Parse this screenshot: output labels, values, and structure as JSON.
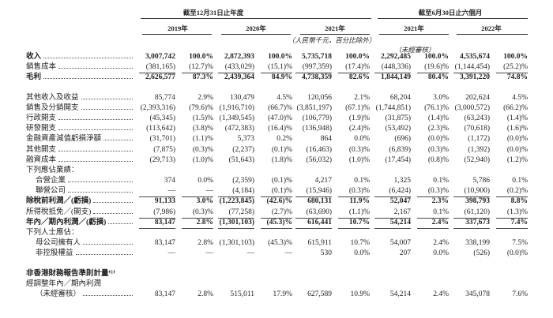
{
  "header": {
    "group_annual": "截至12月31日止年度",
    "group_interim": "截至6月30日止六個月",
    "years": [
      "2019年",
      "2020年",
      "2021年",
      "2021年",
      "2022年"
    ],
    "unit_note": "（人民幣千元，百分比除外）",
    "unaudited_note": "（未經審核）"
  },
  "rows": [
    {
      "label": "收入",
      "bold": true,
      "values": [
        "3,007,742",
        "100.0%",
        "2,872,393",
        "100.0%",
        "5,735,718",
        "100.0%",
        "2,292,485",
        "100.0%",
        "4,535,674",
        "100.0%"
      ]
    },
    {
      "label": "銷售成本",
      "values": [
        "(381,165)",
        "(12.7)%",
        "(433,029)",
        "(15.1)%",
        "(997,359)",
        "(17.4)%",
        "(448,336)",
        "(19.6)%",
        "(1,144,454)",
        "(25.2)%"
      ],
      "line": true
    },
    {
      "label": "毛利",
      "bold": true,
      "values": [
        "2,626,577",
        "87.3%",
        "2,439,364",
        "84.9%",
        "4,738,359",
        "82.6%",
        "1,844,149",
        "80.4%",
        "3,391,220",
        "74.8%"
      ],
      "gap": true
    },
    {
      "label": "其他收入及收益",
      "values": [
        "85,774",
        "2.9%",
        "130,479",
        "4.5%",
        "120,056",
        "2.1%",
        "68,204",
        "3.0%",
        "202,624",
        "4.5%"
      ]
    },
    {
      "label": "銷售及分銷開支",
      "values": [
        "(2,393,316)",
        "(79.6)%",
        "(1,916,710)",
        "(66.7)%",
        "(3,851,197)",
        "(67.1)%",
        "(1,744,851)",
        "(76.1)%",
        "(3,000,572)",
        "(66.2)%"
      ]
    },
    {
      "label": "行政開支",
      "values": [
        "(45,345)",
        "(1.5)%",
        "(1,349,545)",
        "(47.0)%",
        "(106,779)",
        "(1.9)%",
        "(31,875)",
        "(1.4)%",
        "(63,243)",
        "(1.4)%"
      ]
    },
    {
      "label": "研發開支",
      "values": [
        "(113,642)",
        "(3.8)%",
        "(472,383)",
        "(16.4)%",
        "(136,948)",
        "(2.4)%",
        "(53,492)",
        "(2.3)%",
        "(70,618)",
        "(1.6)%"
      ]
    },
    {
      "label": "金融資產減值虧損淨額",
      "values": [
        "(31,701)",
        "(1.1)%",
        "5,373",
        "0.2%",
        "864",
        "0.0%",
        "(696)",
        "(0.0)%",
        "(1,172)",
        "(0.0)%"
      ]
    },
    {
      "label": "其他開支",
      "values": [
        "(7,875)",
        "(0.3)%",
        "(2,237)",
        "(0.1)%",
        "(16,463)",
        "(0.3)%",
        "(6,839)",
        "(0.3)%",
        "(1,392)",
        "(0.0)%"
      ]
    },
    {
      "label": "融資成本",
      "values": [
        "(29,713)",
        "(1.0)%",
        "(51,643)",
        "(1.8)%",
        "(56,032)",
        "(1.0)%",
        "(17,454)",
        "(0.8)%",
        "(52,940)",
        "(1.2)%"
      ]
    },
    {
      "label": "下列應佔業績：",
      "nodots": true,
      "values": []
    },
    {
      "label": "合營企業",
      "indent": true,
      "values": [
        "374",
        "0.0%",
        "(2,359)",
        "(0.1)%",
        "4,217",
        "0.1%",
        "1,325",
        "0.1%",
        "5,786",
        "0.1%"
      ]
    },
    {
      "label": "聯營公司",
      "indent": true,
      "values": [
        "—",
        "—",
        "(4,184)",
        "(0.1)%",
        "(15,946)",
        "(0.3)%",
        "(6,424)",
        "(0.3)%",
        "(10,900)",
        "(0.2)%"
      ],
      "line": true
    },
    {
      "label": "除稅前利潤／(虧損)",
      "bold": true,
      "values": [
        "91,133",
        "3.0%",
        "(1,223,845)",
        "(42.6)%",
        "680,131",
        "11.9%",
        "52,047",
        "2.3%",
        "398,793",
        "8.8%"
      ]
    },
    {
      "label": "所得稅抵免／(開支)",
      "values": [
        "(7,986)",
        "(0.3)%",
        "(77,258)",
        "(2.7)%",
        "(63,690)",
        "(1.1)%",
        "2,167",
        "0.1%",
        "(61,120)",
        "(1.3)%"
      ],
      "line": true
    },
    {
      "label": "年內／期內利潤／(虧損)",
      "bold": true,
      "values": [
        "83,147",
        "2.8%",
        "(1,301,103)",
        "(45.3)%",
        "616,441",
        "10.7%",
        "54,214",
        "2.4%",
        "337,673",
        "7.4%"
      ],
      "line": true
    },
    {
      "label": "下列人士應佔：",
      "nodots": true,
      "values": []
    },
    {
      "label": "母公司擁有人",
      "indent": true,
      "values": [
        "83,147",
        "2.8%",
        "(1,301,103)",
        "(45.3)%",
        "615,911",
        "10.7%",
        "54,007",
        "2.4%",
        "338,199",
        "7.5%"
      ]
    },
    {
      "label": "非控股權益",
      "indent": true,
      "values": [
        "—",
        "—",
        "—",
        "—",
        "530",
        "0.0%",
        "207",
        "0.0%",
        "(526)",
        "(0.0)%"
      ],
      "gap": true
    },
    {
      "label": "非香港財務報告準則計量⁽¹⁾",
      "bold": true,
      "nodots": true,
      "values": []
    },
    {
      "label": "經調整年內／期內利潤",
      "nodots": true,
      "values": []
    },
    {
      "label": "（未經審核）",
      "indent": true,
      "values": [
        "83,147",
        "2.8%",
        "515,011",
        "17.9%",
        "627,589",
        "10.9%",
        "54,214",
        "2.4%",
        "345,078",
        "7.6%"
      ]
    }
  ]
}
